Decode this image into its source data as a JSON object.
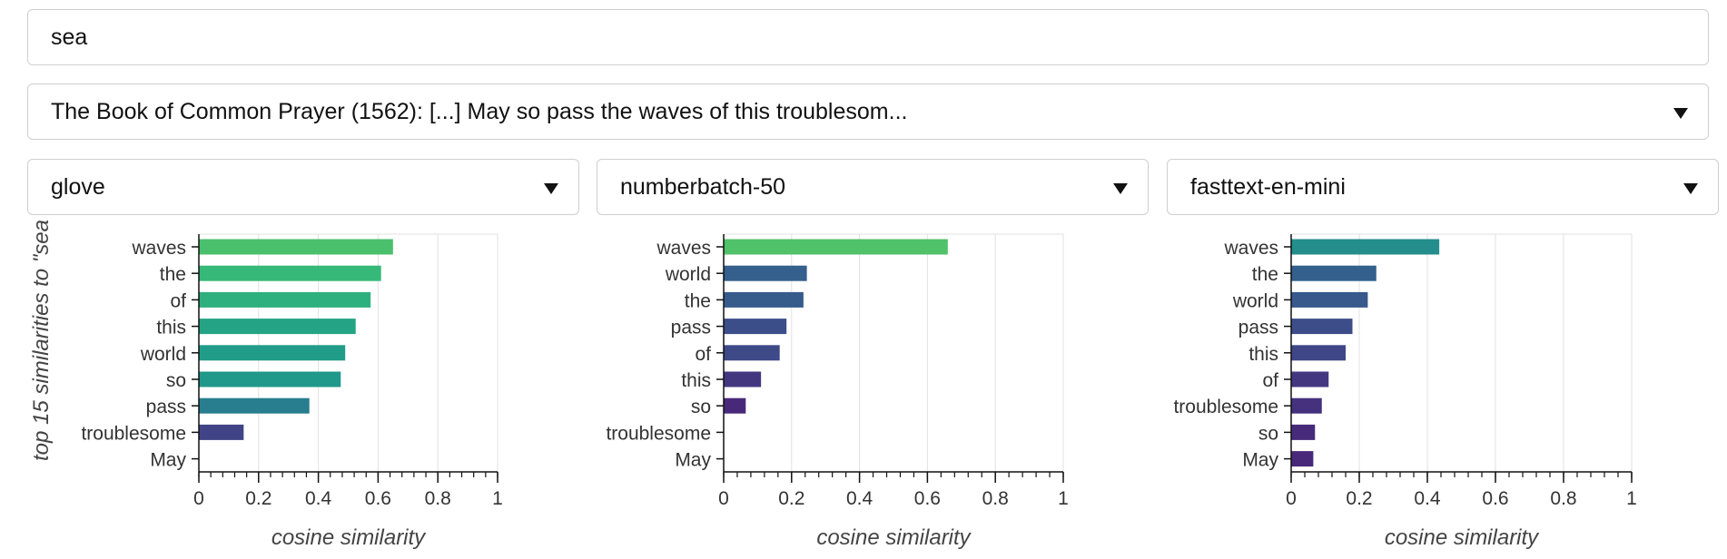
{
  "query_input": {
    "value": "sea"
  },
  "document_select": {
    "selected": "The Book of Common Prayer (1562): [...] May so pass the waves of this troublesom..."
  },
  "model_selects": [
    "glove",
    "numberbatch-50",
    "fasttext-en-mini"
  ],
  "y_axis_title": "top 15 similarities to \"sea",
  "chart_data": [
    {
      "type": "bar",
      "orientation": "horizontal",
      "model": "glove",
      "categories": [
        "waves",
        "the",
        "of",
        "this",
        "world",
        "so",
        "pass",
        "troublesome",
        "May"
      ],
      "values": [
        0.65,
        0.61,
        0.575,
        0.525,
        0.49,
        0.475,
        0.37,
        0.15,
        0.0
      ],
      "xlabel": "cosine similarity",
      "ylabel": "top 15 similarities to \"sea",
      "xlim": [
        0,
        1
      ],
      "xticks": [
        "0",
        "0.2",
        "0.4",
        "0.6",
        "0.8",
        "1"
      ],
      "grid": true,
      "color_scale": "viridis"
    },
    {
      "type": "bar",
      "orientation": "horizontal",
      "model": "numberbatch-50",
      "categories": [
        "waves",
        "world",
        "the",
        "pass",
        "of",
        "this",
        "so",
        "troublesome",
        "May"
      ],
      "values": [
        0.66,
        0.245,
        0.235,
        0.185,
        0.165,
        0.11,
        0.065,
        0.0,
        0.0
      ],
      "xlabel": "cosine similarity",
      "xlim": [
        0,
        1
      ],
      "xticks": [
        "0",
        "0.2",
        "0.4",
        "0.6",
        "0.8",
        "1"
      ],
      "grid": true,
      "color_scale": "viridis"
    },
    {
      "type": "bar",
      "orientation": "horizontal",
      "model": "fasttext-en-mini",
      "categories": [
        "waves",
        "the",
        "world",
        "pass",
        "this",
        "of",
        "troublesome",
        "so",
        "May"
      ],
      "values": [
        0.435,
        0.25,
        0.225,
        0.18,
        0.16,
        0.11,
        0.09,
        0.07,
        0.065
      ],
      "xlabel": "cosine similarity",
      "xlim": [
        0,
        1
      ],
      "xticks": [
        "0",
        "0.2",
        "0.4",
        "0.6",
        "0.8",
        "1"
      ],
      "grid": true,
      "color_scale": "viridis"
    }
  ]
}
